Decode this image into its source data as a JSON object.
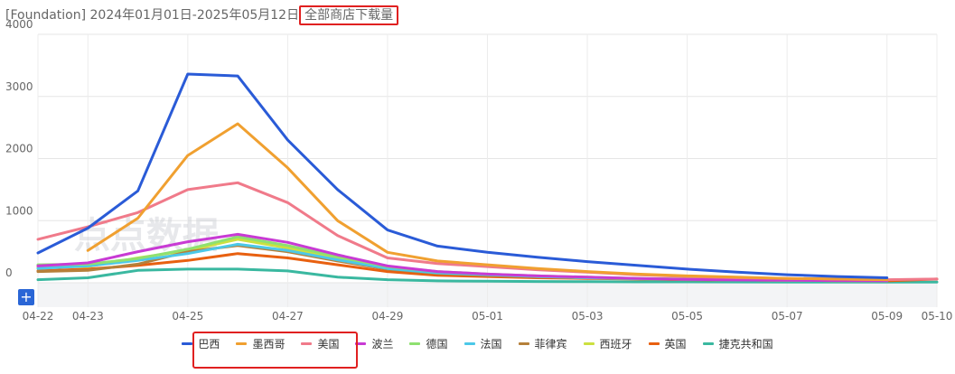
{
  "header": {
    "title_prefix": "[Foundation] 2024年01月01日-2025年05月12日",
    "title_highlight": "全部商店下载量"
  },
  "watermark": "点点数据",
  "controls": {
    "zoom_button": "+"
  },
  "colors": {
    "巴西": "#2a5bd7",
    "墨西哥": "#f0a030",
    "美国": "#f07a8a",
    "波兰": "#c83ad4",
    "德国": "#8ee070",
    "法国": "#4cc8e8",
    "菲律宾": "#b5803a",
    "西班牙": "#cce040",
    "英国": "#e86010",
    "捷克共和国": "#3ab8a0"
  },
  "chart_data": {
    "type": "line",
    "title": "全部商店下载量",
    "categories": [
      "04-22",
      "04-23",
      "04-24",
      "04-25",
      "04-26",
      "04-27",
      "04-28",
      "04-29",
      "04-30",
      "05-01",
      "05-02",
      "05-03",
      "05-04",
      "05-05",
      "05-06",
      "05-07",
      "05-08",
      "05-09",
      "05-10"
    ],
    "x_tick_labels": [
      "04-22",
      "04-23",
      "04-25",
      "04-27",
      "04-29",
      "05-01",
      "05-03",
      "05-05",
      "05-07",
      "05-09",
      "05-10"
    ],
    "ylim": [
      0,
      4000
    ],
    "y_ticks": [
      0,
      1000,
      2000,
      3000,
      4000
    ],
    "grid": true,
    "legend_position": "bottom",
    "series": [
      {
        "name": "巴西",
        "values": [
          480,
          880,
          1480,
          3360,
          3330,
          2300,
          1500,
          850,
          590,
          490,
          410,
          340,
          280,
          220,
          170,
          130,
          100,
          80,
          null
        ]
      },
      {
        "name": "墨西哥",
        "values": [
          null,
          520,
          1040,
          2050,
          2560,
          1850,
          1000,
          490,
          350,
          290,
          230,
          180,
          140,
          110,
          90,
          70,
          60,
          50,
          null
        ]
      },
      {
        "name": "美国",
        "values": [
          700,
          900,
          1130,
          1500,
          1610,
          1290,
          760,
          400,
          310,
          260,
          210,
          170,
          130,
          100,
          80,
          70,
          60,
          50,
          60
        ]
      },
      {
        "name": "波兰",
        "values": [
          270,
          320,
          500,
          660,
          780,
          650,
          450,
          270,
          180,
          140,
          110,
          90,
          70,
          55,
          45,
          40,
          35,
          30,
          null
        ]
      },
      {
        "name": "德国",
        "values": [
          290,
          300,
          390,
          540,
          740,
          600,
          420,
          260,
          180,
          140,
          110,
          90,
          70,
          60,
          50,
          40,
          35,
          30,
          null
        ]
      },
      {
        "name": "法国",
        "values": [
          230,
          270,
          360,
          470,
          620,
          520,
          370,
          230,
          160,
          130,
          100,
          80,
          65,
          55,
          45,
          40,
          35,
          30,
          null
        ]
      },
      {
        "name": "菲律宾",
        "values": [
          180,
          200,
          300,
          500,
          600,
          500,
          350,
          220,
          150,
          120,
          100,
          80,
          65,
          55,
          45,
          40,
          35,
          30,
          null
        ]
      },
      {
        "name": "西班牙",
        "values": [
          250,
          260,
          400,
          520,
          700,
          560,
          380,
          240,
          170,
          130,
          100,
          80,
          65,
          55,
          45,
          40,
          35,
          30,
          null
        ]
      },
      {
        "name": "英国",
        "values": [
          190,
          220,
          280,
          360,
          470,
          400,
          290,
          180,
          120,
          100,
          80,
          70,
          60,
          50,
          45,
          40,
          35,
          30,
          60
        ]
      },
      {
        "name": "捷克共和国",
        "values": [
          50,
          80,
          200,
          220,
          220,
          190,
          90,
          50,
          30,
          25,
          20,
          18,
          15,
          14,
          13,
          12,
          11,
          10,
          10
        ]
      }
    ]
  }
}
